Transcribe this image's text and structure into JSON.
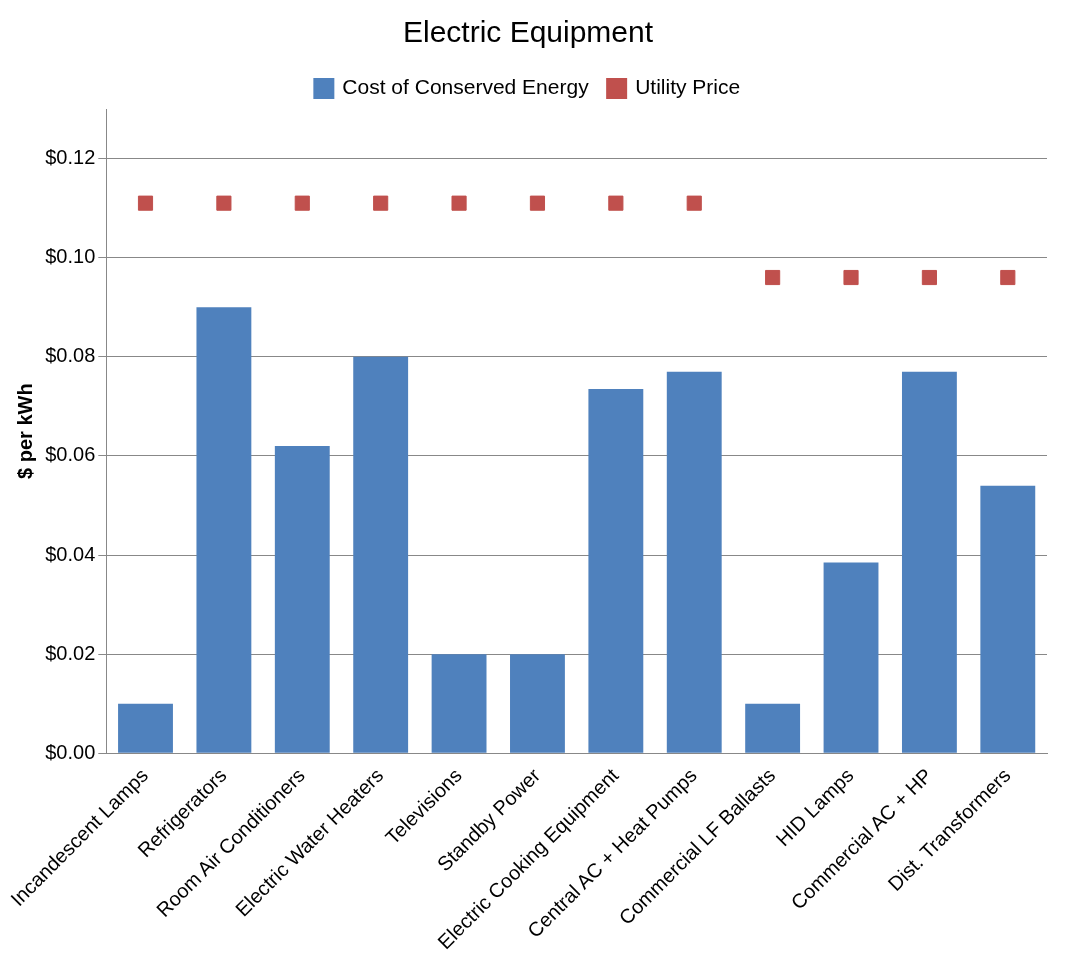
{
  "chart_data": {
    "type": "bar",
    "title": "Electric Equipment",
    "ylabel": "$ per kWh",
    "categories": [
      "Incandescent Lamps",
      "Refrigerators",
      "Room Air Conditioners",
      "Electric Water Heaters",
      "Televisions",
      "Standby Power",
      "Electric Cooking Equipment",
      "Central AC + Heat Pumps",
      "Commercial LF Ballasts",
      "HID Lamps",
      "Commercial AC + HP",
      "Dist. Transformers"
    ],
    "series": [
      {
        "name": "Cost of Conserved Energy",
        "color": "#4f81bd",
        "values": [
          0.01,
          0.09,
          0.062,
          0.08,
          0.02,
          0.02,
          0.0735,
          0.077,
          0.01,
          0.0385,
          0.077,
          0.054
        ]
      },
      {
        "name": "Utility Price",
        "type": "scatter",
        "color": "#c0504d",
        "x": [
          "Incandescent Lamps",
          "Refrigerators",
          "Room Air Conditioners",
          "Electric Water Heaters",
          "Televisions",
          "Standby Power",
          "Electric Cooking Equipment",
          "Central AC + Heat Pumps",
          "Commercial LF Ballasts",
          "HID Lamps",
          "Commercial AC + HP",
          "Dist. Transformers"
        ],
        "values": [
          0.111,
          0.111,
          0.111,
          0.111,
          0.111,
          0.111,
          0.111,
          0.111,
          0.096,
          0.096,
          0.096,
          0.096
        ],
        "marker": "square"
      }
    ],
    "ylim": [
      0,
      0.13
    ],
    "yticks": [
      {
        "value": 0,
        "label": "$0.00"
      },
      {
        "value": 0.02,
        "label": "$0.02"
      },
      {
        "value": 0.04,
        "label": "$0.04"
      },
      {
        "value": 0.06,
        "label": "$0.06"
      },
      {
        "value": 0.08,
        "label": "$0.08"
      },
      {
        "value": 0.1,
        "label": "$0.10"
      },
      {
        "value": 0.12,
        "label": "$0.12"
      }
    ],
    "grid": "y",
    "legend": "top"
  }
}
